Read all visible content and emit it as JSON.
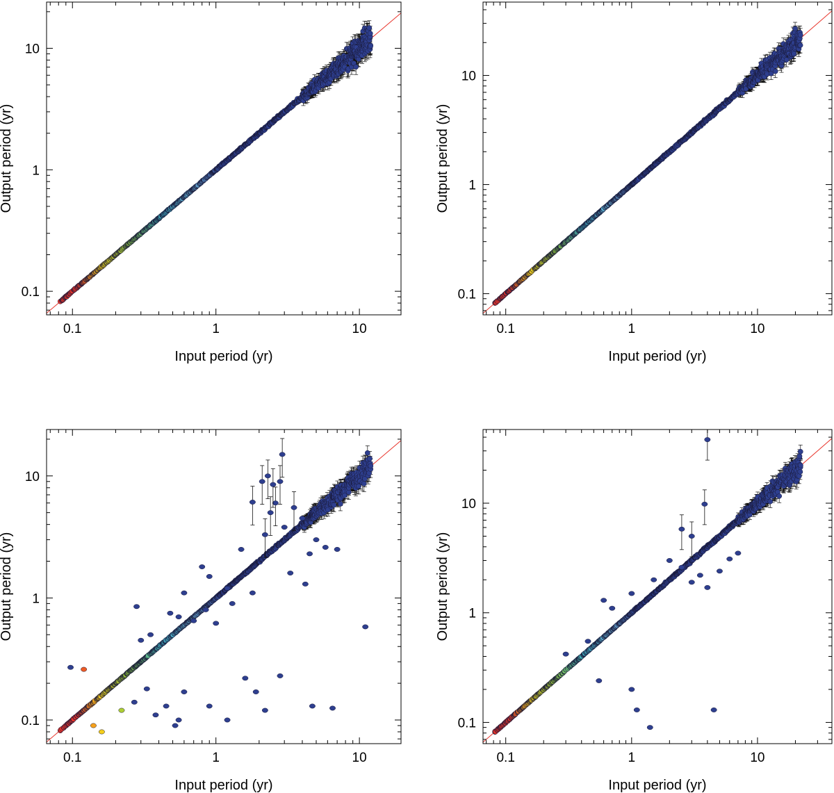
{
  "chart_data": [
    {
      "type": "scatter",
      "panel": "top-left",
      "xscale": "log",
      "yscale": "log",
      "xlim": [
        0.066,
        19.5
      ],
      "ylim": [
        0.064,
        24
      ],
      "xlabel": "Input period (yr)",
      "ylabel": "Output period (yr)",
      "xticks": [
        {
          "value": 0.1,
          "label": "0.1"
        },
        {
          "value": 1,
          "label": "1"
        },
        {
          "value": 10,
          "label": "10"
        }
      ],
      "yticks": [
        {
          "value": 0.1,
          "label": "0.1"
        },
        {
          "value": 1,
          "label": "1"
        },
        {
          "value": 10,
          "label": "10"
        }
      ],
      "reference_line": "y = x",
      "x_max_data": 12,
      "colormap": [
        "#e8332a",
        "#f7a21b",
        "#f2e21c",
        "#8cc63f",
        "#3fb6c9",
        "#6fb8e0",
        "#2e3f8f"
      ],
      "scatter_widening_start": 4,
      "outliers": []
    },
    {
      "type": "scatter",
      "panel": "top-right",
      "xscale": "log",
      "yscale": "log",
      "xlim": [
        0.066,
        39
      ],
      "ylim": [
        0.064,
        47
      ],
      "xlabel": "Input period (yr)",
      "ylabel": "Output period (yr)",
      "xticks": [
        {
          "value": 0.1,
          "label": "0.1"
        },
        {
          "value": 1,
          "label": "1"
        },
        {
          "value": 10,
          "label": "10"
        }
      ],
      "yticks": [
        {
          "value": 0.1,
          "label": "0.1"
        },
        {
          "value": 1,
          "label": "1"
        },
        {
          "value": 10,
          "label": "10"
        }
      ],
      "reference_line": "y = x",
      "x_max_data": 22,
      "colormap": [
        "#e8332a",
        "#f7a21b",
        "#f2e21c",
        "#8cc63f",
        "#3fb6c9",
        "#6fb8e0",
        "#2e3f8f"
      ],
      "scatter_widening_start": 7,
      "outliers": []
    },
    {
      "type": "scatter",
      "panel": "bottom-left",
      "xscale": "log",
      "yscale": "log",
      "xlim": [
        0.066,
        19.5
      ],
      "ylim": [
        0.064,
        24
      ],
      "xlabel": "Input period (yr)",
      "ylabel": "Output period (yr)",
      "xticks": [
        {
          "value": 0.1,
          "label": "0.1"
        },
        {
          "value": 1,
          "label": "1"
        },
        {
          "value": 10,
          "label": "10"
        }
      ],
      "yticks": [
        {
          "value": 0.1,
          "label": "0.1"
        },
        {
          "value": 1,
          "label": "1"
        },
        {
          "value": 10,
          "label": "10"
        }
      ],
      "reference_line": "y = x",
      "x_max_data": 12,
      "colormap": [
        "#e8332a",
        "#f7a21b",
        "#f2e21c",
        "#8cc63f",
        "#3fb6c9",
        "#6fb8e0",
        "#2e3f8f"
      ],
      "scatter_widening_start": 4,
      "outliers": [
        [
          0.097,
          0.27
        ],
        [
          0.12,
          0.26
        ],
        [
          0.14,
          0.09
        ],
        [
          0.16,
          0.08
        ],
        [
          0.22,
          0.12
        ],
        [
          0.27,
          0.14
        ],
        [
          0.33,
          0.18
        ],
        [
          0.38,
          0.11
        ],
        [
          0.45,
          0.13
        ],
        [
          0.52,
          0.09
        ],
        [
          0.55,
          0.1
        ],
        [
          0.6,
          0.17
        ],
        [
          0.9,
          0.13
        ],
        [
          1.2,
          0.1
        ],
        [
          1.6,
          0.22
        ],
        [
          1.9,
          0.17
        ],
        [
          2.2,
          0.12
        ],
        [
          2.8,
          0.23
        ],
        [
          4.7,
          0.13
        ],
        [
          6.5,
          0.125
        ],
        [
          11,
          0.58
        ],
        [
          0.28,
          0.85
        ],
        [
          0.3,
          0.45
        ],
        [
          0.35,
          0.5
        ],
        [
          0.48,
          0.75
        ],
        [
          0.55,
          0.7
        ],
        [
          0.7,
          0.65
        ],
        [
          0.85,
          0.8
        ],
        [
          1.0,
          0.62
        ],
        [
          1.3,
          0.9
        ],
        [
          0.6,
          1.1
        ],
        [
          0.8,
          1.8
        ],
        [
          0.9,
          1.5
        ],
        [
          1.2,
          1.2
        ],
        [
          1.5,
          2.5
        ],
        [
          1.8,
          1.1
        ],
        [
          2.2,
          3.3
        ],
        [
          2.4,
          5.0
        ],
        [
          2.6,
          6.0
        ],
        [
          3.0,
          3.8
        ],
        [
          3.3,
          1.6
        ],
        [
          4.2,
          1.3
        ],
        [
          1.8,
          6.1
        ],
        [
          2.1,
          9.0
        ],
        [
          2.3,
          10.0
        ],
        [
          2.5,
          8.5
        ],
        [
          2.9,
          15.0
        ],
        [
          2.8,
          9.0
        ],
        [
          3.5,
          5.5
        ],
        [
          4.0,
          4.5
        ],
        [
          4.5,
          2.3
        ],
        [
          5.0,
          3.0
        ],
        [
          5.8,
          2.6
        ],
        [
          7.0,
          2.5
        ]
      ]
    },
    {
      "type": "scatter",
      "panel": "bottom-right",
      "xscale": "log",
      "yscale": "log",
      "xlim": [
        0.066,
        39
      ],
      "ylim": [
        0.064,
        47
      ],
      "xlabel": "Input period (yr)",
      "ylabel": "Output period (yr)",
      "xticks": [
        {
          "value": 0.1,
          "label": "0.1"
        },
        {
          "value": 1,
          "label": "1"
        },
        {
          "value": 10,
          "label": "10"
        }
      ],
      "yticks": [
        {
          "value": 0.1,
          "label": "0.1"
        },
        {
          "value": 1,
          "label": "1"
        },
        {
          "value": 10,
          "label": "10"
        }
      ],
      "reference_line": "y = x",
      "x_max_data": 22,
      "colormap": [
        "#e8332a",
        "#f7a21b",
        "#f2e21c",
        "#8cc63f",
        "#3fb6c9",
        "#6fb8e0",
        "#2e3f8f"
      ],
      "scatter_widening_start": 7,
      "outliers": [
        [
          0.55,
          0.24
        ],
        [
          1.0,
          0.2
        ],
        [
          1.1,
          0.13
        ],
        [
          1.4,
          0.09
        ],
        [
          4.5,
          0.13
        ],
        [
          0.3,
          0.42
        ],
        [
          0.45,
          0.55
        ],
        [
          0.6,
          1.3
        ],
        [
          0.7,
          1.1
        ],
        [
          1.0,
          1.5
        ],
        [
          1.5,
          2.0
        ],
        [
          2.0,
          3.0
        ],
        [
          2.5,
          2.6
        ],
        [
          3.0,
          1.9
        ],
        [
          3.5,
          2.2
        ],
        [
          4.0,
          1.7
        ],
        [
          5.0,
          2.4
        ],
        [
          6.0,
          3.1
        ],
        [
          7.0,
          3.5
        ],
        [
          3.8,
          9.8
        ],
        [
          4.0,
          38.0
        ],
        [
          2.5,
          5.8
        ],
        [
          3.0,
          5.0
        ]
      ]
    }
  ]
}
